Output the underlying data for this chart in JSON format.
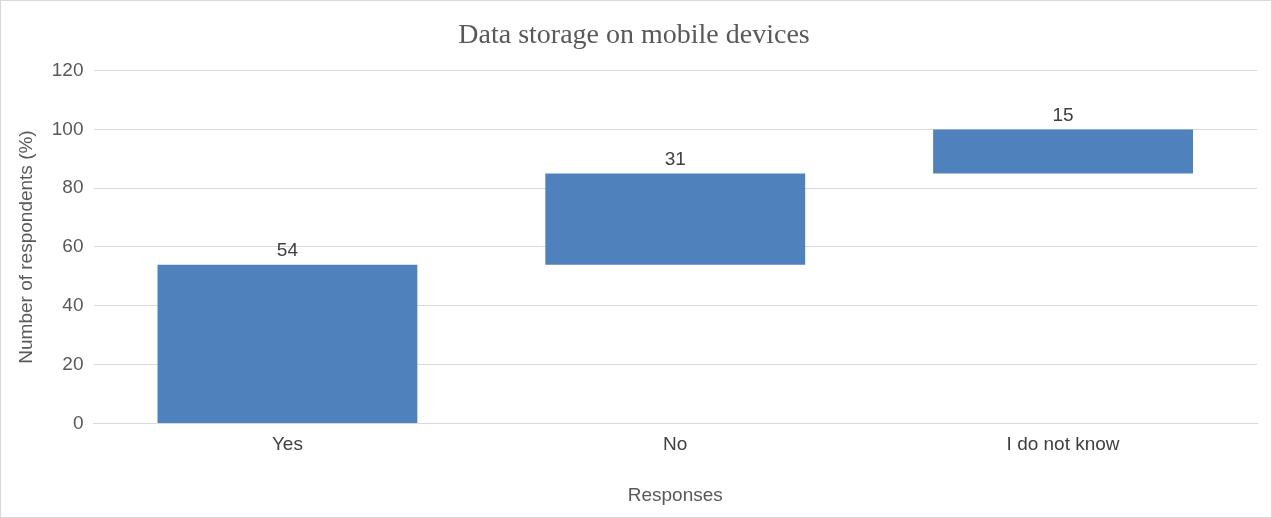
{
  "chart_data": {
    "type": "bar",
    "title": "Data storage on mobile devices",
    "xlabel": "Responses",
    "ylabel": "Number of respondents (%)",
    "categories": [
      "Yes",
      "No",
      "I do not know"
    ],
    "values": [
      54,
      31,
      15
    ],
    "base": [
      0,
      54,
      85
    ],
    "color": "#4f81bd",
    "ylim": [
      0,
      120
    ],
    "yticks": [
      0,
      20,
      40,
      60,
      80,
      100,
      120
    ],
    "grid": "y",
    "legend": false,
    "data_labels": true
  }
}
